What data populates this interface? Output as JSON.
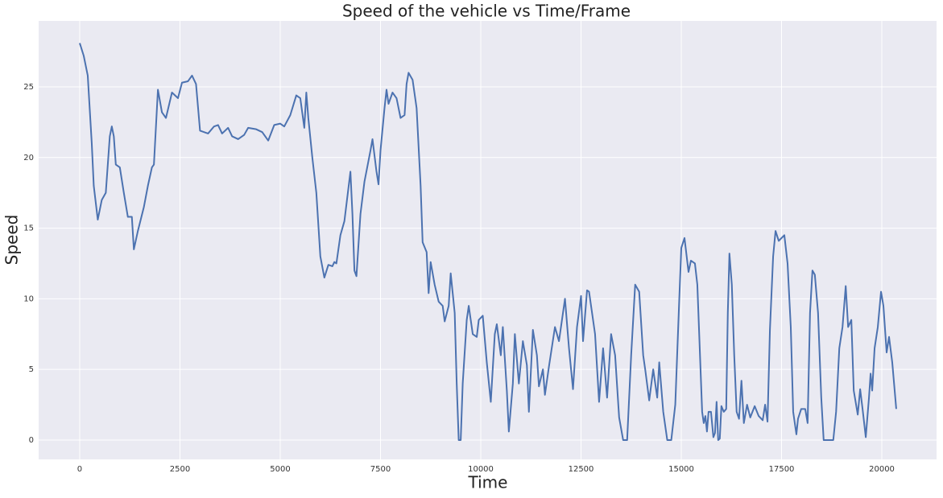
{
  "chart_data": {
    "type": "line",
    "title": "Speed of the vehicle vs Time/Frame",
    "xlabel": "Time",
    "ylabel": "Speed",
    "xlim": [
      -1024,
      21365
    ],
    "ylim": [
      -1.37,
      29.67
    ],
    "xticks": [
      0,
      2500,
      5000,
      7500,
      10000,
      12500,
      15000,
      17500,
      20000
    ],
    "yticks": [
      0,
      5,
      10,
      15,
      20,
      25
    ],
    "grid": true,
    "series": [
      {
        "name": "Speed",
        "color": "#4c72b0",
        "x": [
          0,
          100,
          200,
          300,
          350,
          450,
          550,
          650,
          750,
          800,
          850,
          900,
          1000,
          1100,
          1200,
          1300,
          1350,
          1450,
          1600,
          1700,
          1800,
          1850,
          1950,
          2050,
          2150,
          2300,
          2450,
          2550,
          2700,
          2800,
          2900,
          3000,
          3100,
          3200,
          3350,
          3450,
          3550,
          3700,
          3800,
          3950,
          4100,
          4200,
          4400,
          4550,
          4700,
          4850,
          5000,
          5100,
          5250,
          5400,
          5500,
          5600,
          5650,
          5700,
          5800,
          5900,
          6000,
          6100,
          6200,
          6300,
          6350,
          6400,
          6500,
          6600,
          6750,
          6800,
          6850,
          6900,
          7000,
          7100,
          7250,
          7300,
          7400,
          7450,
          7500,
          7600,
          7650,
          7700,
          7800,
          7900,
          8000,
          8100,
          8150,
          8200,
          8300,
          8400,
          8500,
          8550,
          8650,
          8700,
          8750,
          8850,
          8950,
          9050,
          9100,
          9200,
          9250,
          9350,
          9400,
          9450,
          9500,
          9550,
          9650,
          9700,
          9800,
          9900,
          9950,
          10050,
          10150,
          10250,
          10350,
          10400,
          10500,
          10550,
          10650,
          10700,
          10800,
          10850,
          10950,
          11050,
          11150,
          11200,
          11300,
          11400,
          11450,
          11550,
          11600,
          11700,
          11850,
          11950,
          12050,
          12100,
          12200,
          12300,
          12400,
          12500,
          12550,
          12650,
          12700,
          12850,
          12950,
          13050,
          13150,
          13250,
          13350,
          13450,
          13550,
          13650,
          13750,
          13850,
          13950,
          14050,
          14100,
          14200,
          14300,
          14400,
          14450,
          14550,
          14650,
          14750,
          14850,
          14950,
          15000,
          15080,
          15180,
          15240,
          15340,
          15400,
          15480,
          15520,
          15560,
          15600,
          15640,
          15680,
          15740,
          15800,
          15840,
          15880,
          15920,
          15960,
          16000,
          16060,
          16120,
          16160,
          16200,
          16260,
          16320,
          16380,
          16440,
          16500,
          16560,
          16640,
          16720,
          16830,
          16930,
          17030,
          17090,
          17150,
          17210,
          17290,
          17350,
          17430,
          17570,
          17650,
          17730,
          17790,
          17870,
          17910,
          17990,
          18090,
          18150,
          18210,
          18270,
          18330,
          18410,
          18490,
          18550,
          18790,
          18860,
          18940,
          19020,
          19100,
          19160,
          19240,
          19300,
          19400,
          19460,
          19520,
          19600,
          19680,
          19720,
          19760,
          19820,
          19900,
          19980,
          20040,
          20120,
          20180,
          20260,
          20360
        ],
        "values": [
          28.1,
          27.2,
          25.8,
          21,
          18,
          15.6,
          17,
          17.5,
          21.5,
          22.2,
          21.5,
          19.5,
          19.3,
          17.5,
          15.8,
          15.8,
          13.5,
          14.8,
          16.5,
          18,
          19.3,
          19.5,
          24.8,
          23.2,
          22.8,
          24.6,
          24.2,
          25.3,
          25.4,
          25.8,
          25.2,
          21.9,
          21.8,
          21.7,
          22.2,
          22.3,
          21.7,
          22.1,
          21.5,
          21.3,
          21.6,
          22.1,
          22,
          21.8,
          21.2,
          22.3,
          22.4,
          22.2,
          23,
          24.4,
          24.2,
          22.1,
          24.6,
          22.8,
          20,
          17.5,
          13,
          11.5,
          12.4,
          12.3,
          12.6,
          12.5,
          14.5,
          15.5,
          19,
          16,
          12,
          11.6,
          16,
          18.3,
          20.5,
          21.3,
          19,
          18.1,
          20.5,
          23.5,
          24.8,
          23.8,
          24.6,
          24.2,
          22.8,
          23,
          25.2,
          26,
          25.5,
          23.5,
          18,
          14,
          13.3,
          10.4,
          12.6,
          11,
          9.8,
          9.5,
          8.4,
          9.5,
          11.8,
          9,
          4,
          0,
          0,
          4,
          8.5,
          9.5,
          7.5,
          7.3,
          8.5,
          8.8,
          5.5,
          2.7,
          7.5,
          8.2,
          6,
          8,
          3.5,
          0.6,
          4,
          7.5,
          4,
          7,
          5.3,
          2,
          7.8,
          6,
          3.8,
          5,
          3.2,
          5.2,
          8,
          7,
          9,
          10,
          6.5,
          3.6,
          8,
          10.2,
          7,
          10.6,
          10.5,
          7.5,
          2.7,
          6.5,
          3,
          7.5,
          6,
          1.6,
          0,
          0,
          6,
          11,
          10.5,
          6,
          5,
          2.8,
          5,
          3,
          5.5,
          2,
          0,
          0,
          2.5,
          10,
          13.6,
          14.3,
          11.9,
          12.7,
          12.5,
          11,
          5,
          2,
          1.2,
          1.7,
          0.6,
          2,
          2,
          0.2,
          0.5,
          2.7,
          0,
          0.1,
          2.4,
          2,
          2.2,
          9,
          13.2,
          11,
          6,
          2,
          1.5,
          4.2,
          1.2,
          2.5,
          1.6,
          2.4,
          1.7,
          1.4,
          2.5,
          1.3,
          7.8,
          13,
          14.8,
          14.1,
          14.5,
          12.5,
          8,
          2,
          0.4,
          1.5,
          2.2,
          2.2,
          1.2,
          9,
          12,
          11.7,
          9,
          3,
          0,
          0,
          2,
          6.5,
          8,
          10.9,
          8,
          8.5,
          3.5,
          1.8,
          3.6,
          2.2,
          0.2,
          3,
          4.7,
          3.5,
          6.5,
          8,
          10.5,
          9.5,
          6.2,
          7.3,
          5.5,
          2.2
        ]
      }
    ]
  }
}
